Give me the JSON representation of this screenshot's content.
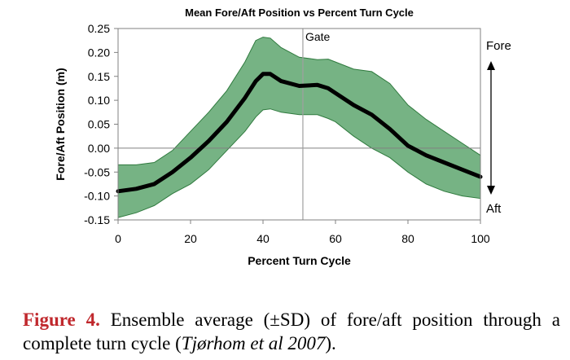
{
  "chart_data": {
    "type": "area",
    "title": "Mean Fore/Aft Position vs Percent Turn Cycle",
    "xlabel": "Percent Turn Cycle",
    "ylabel": "Fore/Aft Position (m)",
    "xlim": [
      0,
      100
    ],
    "ylim": [
      -0.15,
      0.25
    ],
    "x_ticks": [
      "0",
      "20",
      "40",
      "60",
      "80",
      "100"
    ],
    "y_ticks": [
      "0.25",
      "0.20",
      "0.15",
      "0.10",
      "0.05",
      "0.00",
      "-0.05",
      "-0.10",
      "-0.15"
    ],
    "grid": false,
    "annotations": {
      "gate_label": "Gate",
      "gate_x": 51,
      "fore_label": "Fore",
      "aft_label": "Aft"
    },
    "x": [
      0,
      5,
      10,
      15,
      20,
      25,
      30,
      35,
      38,
      40,
      42,
      45,
      50,
      55,
      58,
      60,
      65,
      70,
      75,
      80,
      85,
      90,
      95,
      100
    ],
    "mean": [
      -0.09,
      -0.085,
      -0.075,
      -0.05,
      -0.02,
      0.015,
      0.055,
      0.105,
      0.14,
      0.155,
      0.155,
      0.14,
      0.13,
      0.132,
      0.125,
      0.115,
      0.09,
      0.07,
      0.04,
      0.005,
      -0.015,
      -0.03,
      -0.045,
      -0.06
    ],
    "sd_upper": [
      -0.035,
      -0.035,
      -0.03,
      -0.005,
      0.035,
      0.075,
      0.12,
      0.18,
      0.225,
      0.232,
      0.23,
      0.21,
      0.19,
      0.185,
      0.186,
      0.18,
      0.165,
      0.16,
      0.135,
      0.09,
      0.06,
      0.035,
      0.01,
      -0.015
    ],
    "sd_lower": [
      -0.145,
      -0.135,
      -0.12,
      -0.095,
      -0.075,
      -0.045,
      -0.005,
      0.035,
      0.065,
      0.08,
      0.082,
      0.075,
      0.07,
      0.07,
      0.062,
      0.055,
      0.025,
      0.0,
      -0.02,
      -0.05,
      -0.075,
      -0.09,
      -0.1,
      -0.105
    ],
    "colors": {
      "band_fill": "#5ea66e",
      "band_stroke": "#2f7a3e",
      "mean_line": "#000000",
      "axis": "#808080",
      "gate_line": "#a0a0a0"
    }
  },
  "caption": {
    "label": "Figure 4.",
    "text_before_ref": " Ensemble average (±SD) of fore/aft position through a complete turn cycle (",
    "reference": "Tjørhom et al 2007",
    "text_after_ref": ")."
  }
}
